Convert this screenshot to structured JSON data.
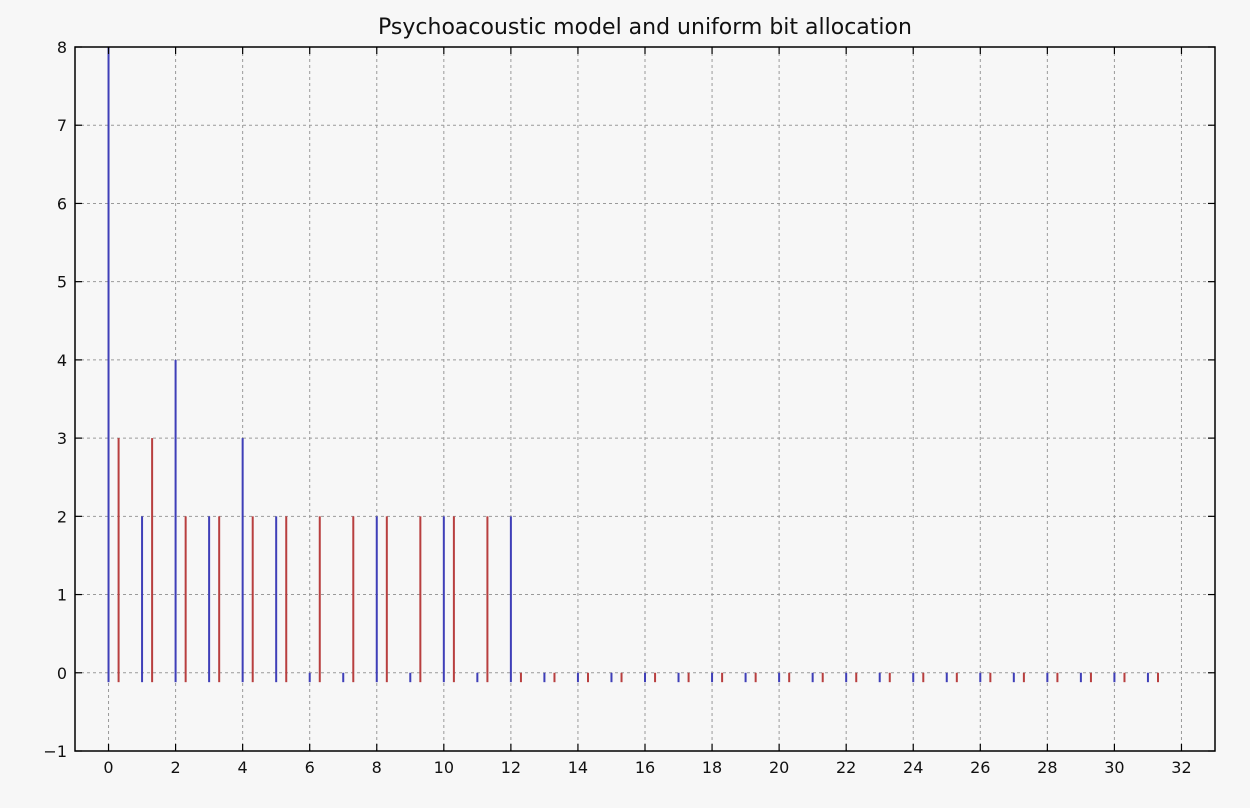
{
  "chart_data": {
    "type": "bar",
    "title": "Psychoacoustic model and uniform bit allocation",
    "xlabel": "",
    "ylabel": "",
    "xlim": [
      -1,
      33
    ],
    "ylim": [
      -1,
      8
    ],
    "xticks": [
      "0",
      "2",
      "4",
      "6",
      "8",
      "10",
      "12",
      "14",
      "16",
      "18",
      "20",
      "22",
      "24",
      "26",
      "28",
      "30",
      "32"
    ],
    "yticks": [
      "−1",
      "0",
      "1",
      "2",
      "3",
      "4",
      "5",
      "6",
      "7",
      "8"
    ],
    "grid": true,
    "x": [
      0,
      1,
      2,
      3,
      4,
      5,
      6,
      7,
      8,
      9,
      10,
      11,
      12,
      13,
      14,
      15,
      16,
      17,
      18,
      19,
      20,
      21,
      22,
      23,
      24,
      25,
      26,
      27,
      28,
      29,
      30,
      31
    ],
    "baseline": -0.12,
    "series": [
      {
        "color": "#3f3fb8",
        "offset": 0,
        "values": [
          8,
          2,
          4,
          2,
          3,
          2,
          0,
          0,
          2,
          0,
          2,
          0,
          2,
          0,
          0,
          0,
          0,
          0,
          0,
          0,
          0,
          0,
          0,
          0,
          0,
          0,
          0,
          0,
          0,
          0,
          0,
          0
        ]
      },
      {
        "color": "#b83f3f",
        "offset": 0.3,
        "values": [
          3,
          3,
          2,
          2,
          2,
          2,
          2,
          2,
          2,
          2,
          2,
          2,
          0,
          0,
          0,
          0,
          0,
          0,
          0,
          0,
          0,
          0,
          0,
          0,
          0,
          0,
          0,
          0,
          0,
          0,
          0,
          0
        ]
      }
    ]
  }
}
